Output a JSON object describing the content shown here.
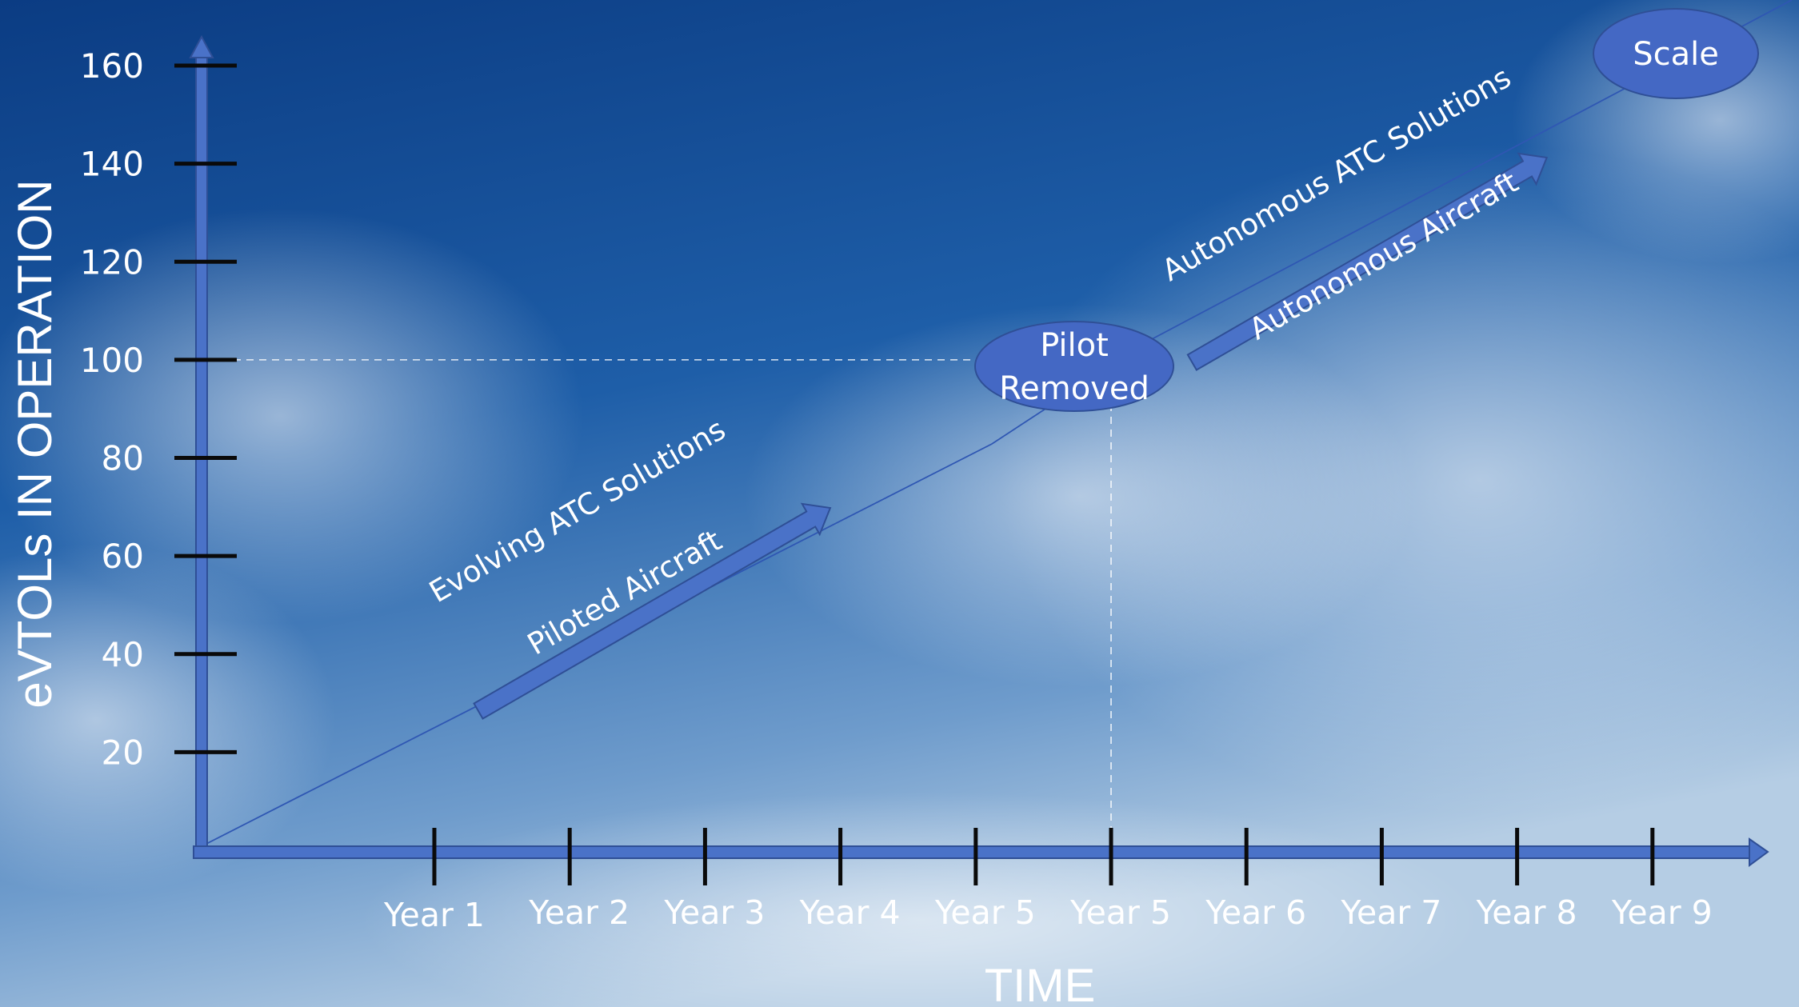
{
  "chart_data": {
    "type": "line",
    "xlabel": "TIME",
    "ylabel": "eVTOLs IN OPERATION",
    "x_ticks": [
      "Year 1",
      "Year 2",
      "Year 3",
      "Year 4",
      "Year 5",
      "Year 5",
      "Year 6",
      "Year 7",
      "Year 8",
      "Year 9"
    ],
    "y_ticks": [
      20,
      40,
      60,
      80,
      100,
      120,
      140,
      160
    ],
    "ylim": [
      0,
      160
    ],
    "series": [
      {
        "values": [
          0,
          55,
          100,
          160
        ]
      }
    ],
    "milestones": [
      {
        "label_lines": [
          "Pilot",
          "Removed"
        ],
        "x": "Year 5",
        "y": 100
      },
      {
        "label_lines": [
          "Scale"
        ],
        "y": 160
      }
    ],
    "annotations": [
      {
        "above": "Evolving ATC Solutions",
        "below": "Piloted Aircraft"
      },
      {
        "above": "Autonomous ATC Solutions",
        "below": "Autonomous Aircraft"
      }
    ],
    "reference_lines": "dashed guides from the 100 tick and Year 5 to the Pilot Removed milestone",
    "grid": false,
    "colors": {
      "axis_fill": "#4a72c8",
      "axis_stroke": "#2f4f96",
      "milestone_fill": "#4468c4",
      "tick_mark": "#0a0a0a",
      "text": "#ffffff",
      "sky_top": "#0c3f86",
      "sky_bottom": "#a9c4df"
    }
  }
}
